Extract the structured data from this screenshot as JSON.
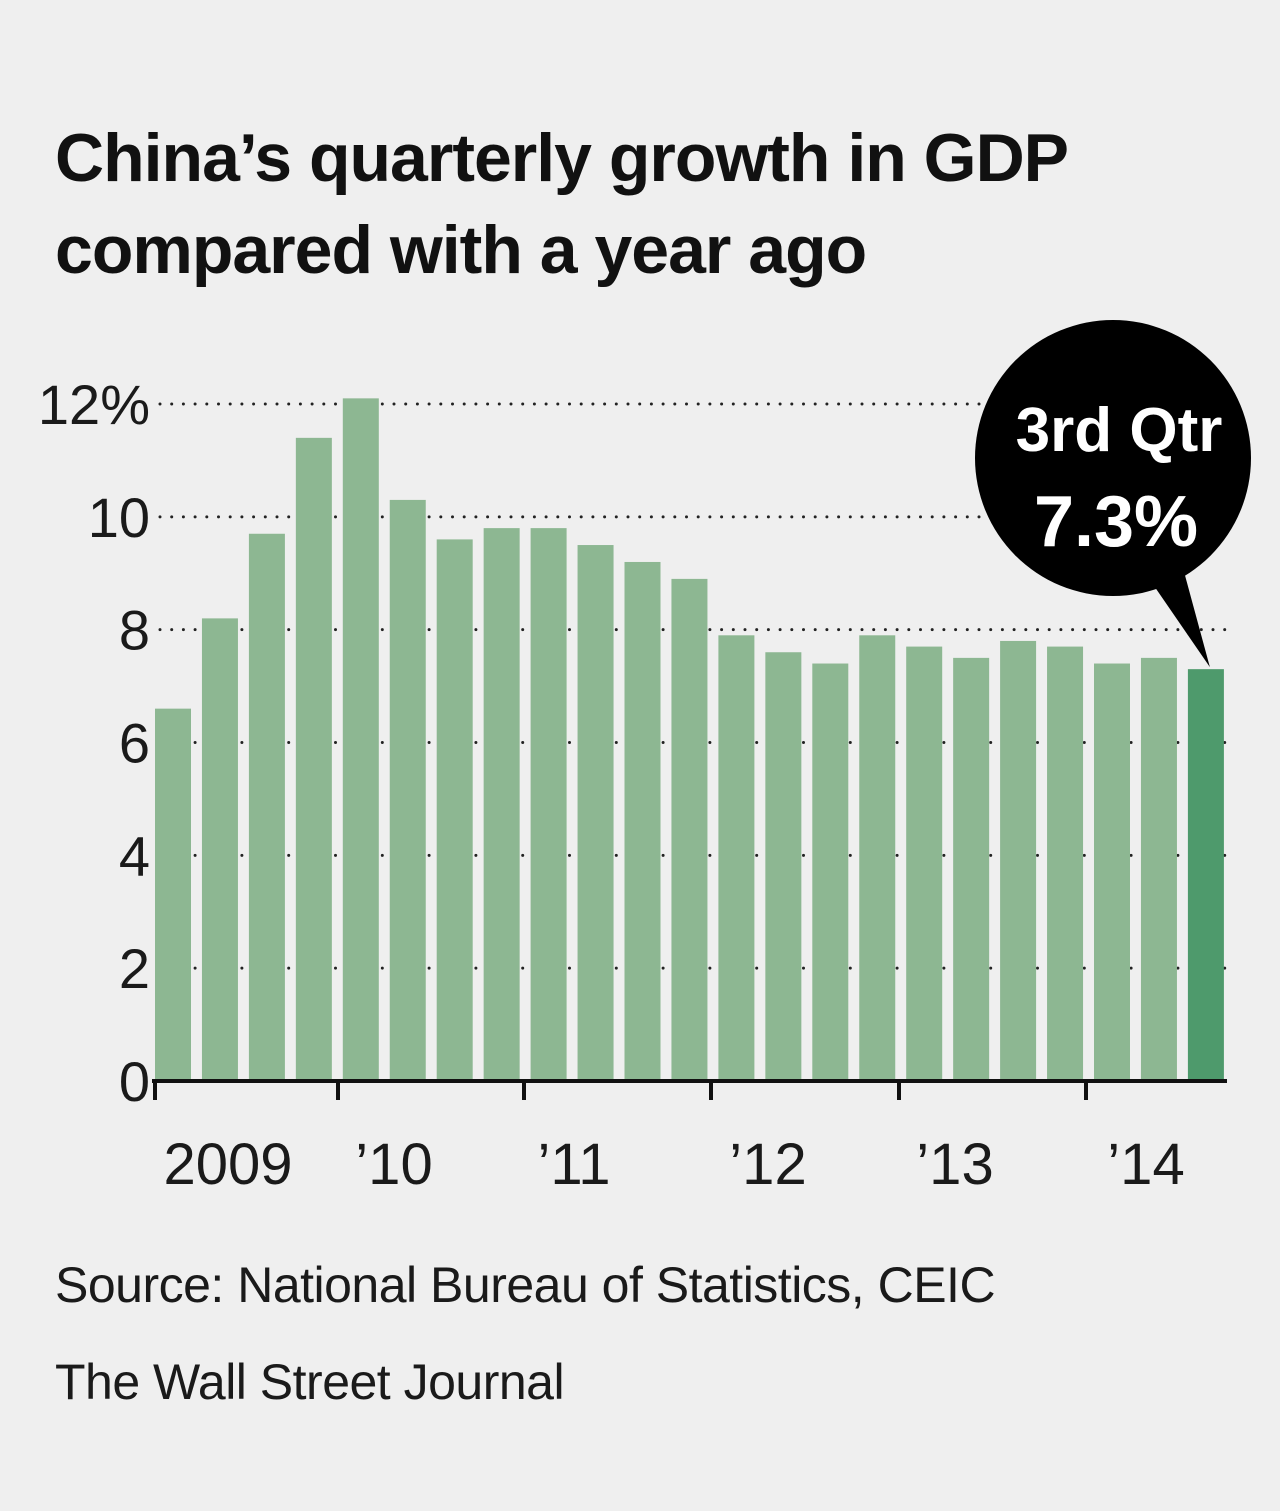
{
  "header": {
    "title_line1": "China’s quarterly growth in GDP",
    "title_line2": "compared with a year ago"
  },
  "footer": {
    "source": "Source: National Bureau of Statistics, CEIC",
    "credit": "The Wall Street Journal"
  },
  "colors": {
    "bar": "#8db792",
    "highlight_bar": "#4e9a6c",
    "callout": "#000000",
    "background": "#efefef"
  },
  "chart_data": {
    "type": "bar",
    "title": "China’s quarterly growth in GDP compared with a year ago",
    "ylim": [
      0,
      12
    ],
    "yticks": [
      0,
      2,
      4,
      6,
      8,
      10,
      12
    ],
    "ytick_labels": [
      "0",
      "2",
      "4",
      "6",
      "8",
      "10",
      "12%"
    ],
    "year_labels": [
      "2009",
      "’10",
      "’11",
      "’12",
      "’13",
      "’14"
    ],
    "grid": "dotted horizontal",
    "categories": [
      "2009 Q1",
      "2009 Q2",
      "2009 Q3",
      "2009 Q4",
      "2010 Q1",
      "2010 Q2",
      "2010 Q3",
      "2010 Q4",
      "2011 Q1",
      "2011 Q2",
      "2011 Q3",
      "2011 Q4",
      "2012 Q1",
      "2012 Q2",
      "2012 Q3",
      "2012 Q4",
      "2013 Q1",
      "2013 Q2",
      "2013 Q3",
      "2013 Q4",
      "2014 Q1",
      "2014 Q2",
      "2014 Q3"
    ],
    "values": [
      6.6,
      8.2,
      9.7,
      11.4,
      12.1,
      10.3,
      9.6,
      9.8,
      9.8,
      9.5,
      9.2,
      8.9,
      7.9,
      7.6,
      7.4,
      7.9,
      7.7,
      7.5,
      7.8,
      7.7,
      7.4,
      7.5,
      7.3
    ],
    "highlight_index": 22,
    "annotation": {
      "line1": "3rd Qtr",
      "line2": "7.3%"
    }
  }
}
